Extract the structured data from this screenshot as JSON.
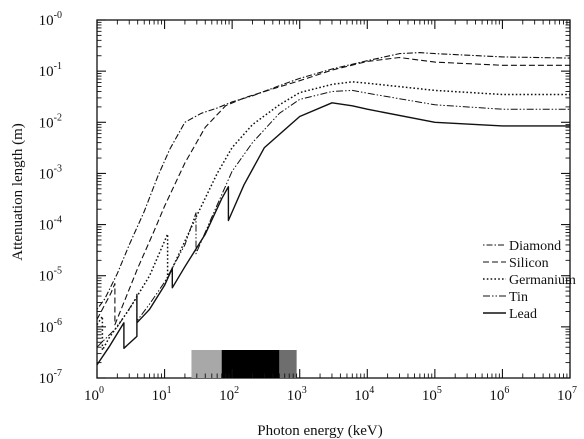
{
  "chart_data": {
    "type": "line",
    "title": "",
    "xlabel": "Photon energy (keV)",
    "ylabel": "Attenuation length (m)",
    "x_scale": "log",
    "y_scale": "log",
    "xlim": [
      1,
      10000000
    ],
    "ylim": [
      1e-07,
      1
    ],
    "grid": false,
    "legend_position": "right, lower-middle",
    "x_ticks": [
      {
        "value": 1,
        "base": "10",
        "exp": "0"
      },
      {
        "value": 10,
        "base": "10",
        "exp": "1"
      },
      {
        "value": 100,
        "base": "10",
        "exp": "2"
      },
      {
        "value": 1000,
        "base": "10",
        "exp": "3"
      },
      {
        "value": 10000,
        "base": "10",
        "exp": "4"
      },
      {
        "value": 100000,
        "base": "10",
        "exp": "5"
      },
      {
        "value": 1000000,
        "base": "10",
        "exp": "6"
      },
      {
        "value": 10000000,
        "base": "10",
        "exp": "7"
      }
    ],
    "y_ticks": [
      {
        "value": 1,
        "base": "10",
        "exp": "-0"
      },
      {
        "value": 0.1,
        "base": "10",
        "exp": "-1"
      },
      {
        "value": 0.01,
        "base": "10",
        "exp": "-2"
      },
      {
        "value": 0.001,
        "base": "10",
        "exp": "-3"
      },
      {
        "value": 0.0001,
        "base": "10",
        "exp": "-4"
      },
      {
        "value": 1e-05,
        "base": "10",
        "exp": "-5"
      },
      {
        "value": 1e-06,
        "base": "10",
        "exp": "-6"
      },
      {
        "value": 1e-07,
        "base": "10",
        "exp": "-7"
      }
    ],
    "series": [
      {
        "name": "Diamond",
        "dash": "1.5,2,6,2",
        "width": 1.1,
        "points": [
          [
            1,
            2.2e-06
          ],
          [
            1.3,
            3.5e-06
          ],
          [
            2,
            1.1e-05
          ],
          [
            3,
            4e-05
          ],
          [
            5,
            0.00018
          ],
          [
            8,
            0.0009
          ],
          [
            12,
            0.003
          ],
          [
            20,
            0.01
          ],
          [
            35,
            0.015
          ],
          [
            60,
            0.019
          ],
          [
            100,
            0.025
          ],
          [
            200,
            0.033
          ],
          [
            500,
            0.052
          ],
          [
            1000,
            0.072
          ],
          [
            3000,
            0.11
          ],
          [
            10000,
            0.16
          ],
          [
            30000,
            0.22
          ],
          [
            60000,
            0.23
          ],
          [
            100000,
            0.22
          ],
          [
            1000000,
            0.19
          ],
          [
            10000000,
            0.18
          ]
        ]
      },
      {
        "name": "Silicon",
        "dash": "6,3",
        "width": 1.1,
        "points": [
          [
            1,
            1.4e-06
          ],
          [
            1.6,
            4.5e-06
          ],
          [
            1.84,
            7e-06
          ],
          [
            1.84,
            1.1e-06
          ],
          [
            2.5,
            3e-06
          ],
          [
            4,
            1.4e-05
          ],
          [
            7,
            7.5e-05
          ],
          [
            10,
            0.00023
          ],
          [
            20,
            0.0016
          ],
          [
            40,
            0.008
          ],
          [
            80,
            0.021
          ],
          [
            150,
            0.03
          ],
          [
            400,
            0.045
          ],
          [
            1000,
            0.065
          ],
          [
            3000,
            0.105
          ],
          [
            10000,
            0.155
          ],
          [
            30000,
            0.185
          ],
          [
            100000,
            0.15
          ],
          [
            1000000,
            0.13
          ],
          [
            10000000,
            0.13
          ]
        ]
      },
      {
        "name": "Germanium",
        "dash": "1.6,2.2",
        "width": 1.5,
        "points": [
          [
            1,
            1.1e-06
          ],
          [
            1.2,
            1.6e-06
          ],
          [
            1.2,
            3.5e-07
          ],
          [
            1.5,
            6e-07
          ],
          [
            3,
            2.2e-06
          ],
          [
            6,
            1e-05
          ],
          [
            11.1,
            6.5e-05
          ],
          [
            11.1,
            9e-06
          ],
          [
            15,
            2.1e-05
          ],
          [
            30,
            0.00015
          ],
          [
            60,
            0.001
          ],
          [
            100,
            0.0032
          ],
          [
            200,
            0.009
          ],
          [
            500,
            0.022
          ],
          [
            1000,
            0.038
          ],
          [
            3000,
            0.055
          ],
          [
            6000,
            0.062
          ],
          [
            10000,
            0.058
          ],
          [
            100000,
            0.042
          ],
          [
            1000000,
            0.035
          ],
          [
            10000000,
            0.035
          ]
        ]
      },
      {
        "name": "Tin",
        "dash": "7,2,1.5,2,1.5,2",
        "width": 1.0,
        "points": [
          [
            1,
            4e-07
          ],
          [
            2,
            1e-06
          ],
          [
            3.9,
            3.8e-06
          ],
          [
            3.9,
            1.3e-06
          ],
          [
            6,
            2.8e-06
          ],
          [
            10,
            7.5e-06
          ],
          [
            20,
            4e-05
          ],
          [
            29.2,
            0.00017
          ],
          [
            29.2,
            2.7e-05
          ],
          [
            50,
            0.00014
          ],
          [
            100,
            0.0011
          ],
          [
            200,
            0.004
          ],
          [
            500,
            0.015
          ],
          [
            1000,
            0.028
          ],
          [
            3000,
            0.04
          ],
          [
            6000,
            0.042
          ],
          [
            10000,
            0.037
          ],
          [
            100000,
            0.022
          ],
          [
            1000000,
            0.018
          ],
          [
            10000000,
            0.018
          ]
        ]
      },
      {
        "name": "Lead",
        "dash": "",
        "width": 1.4,
        "points": [
          [
            1,
            1.8e-07
          ],
          [
            1.5,
            4e-07
          ],
          [
            2.5,
            1.2e-06
          ],
          [
            2.5,
            3.8e-07
          ],
          [
            3.9,
            6.5e-07
          ],
          [
            3.9,
            4.3e-06
          ],
          [
            3.9,
            1.2e-06
          ],
          [
            6,
            2.2e-06
          ],
          [
            10,
            6.5e-06
          ],
          [
            13,
            1.4e-05
          ],
          [
            13,
            5.8e-06
          ],
          [
            20,
            1.5e-05
          ],
          [
            40,
            6.5e-05
          ],
          [
            70,
            0.00032
          ],
          [
            88,
            0.00055
          ],
          [
            88,
            0.00012
          ],
          [
            150,
            0.0006
          ],
          [
            300,
            0.0032
          ],
          [
            1000,
            0.013
          ],
          [
            3000,
            0.024
          ],
          [
            6000,
            0.021
          ],
          [
            10000,
            0.018
          ],
          [
            100000,
            0.01
          ],
          [
            1000000,
            0.0085
          ],
          [
            10000000,
            0.0085
          ]
        ]
      }
    ],
    "bands": [
      {
        "from": 25,
        "to": 70,
        "color": "#a8a8a8"
      },
      {
        "from": 70,
        "to": 500,
        "color": "#000000"
      },
      {
        "from": 500,
        "to": 900,
        "color": "#6e6e6e"
      }
    ]
  }
}
